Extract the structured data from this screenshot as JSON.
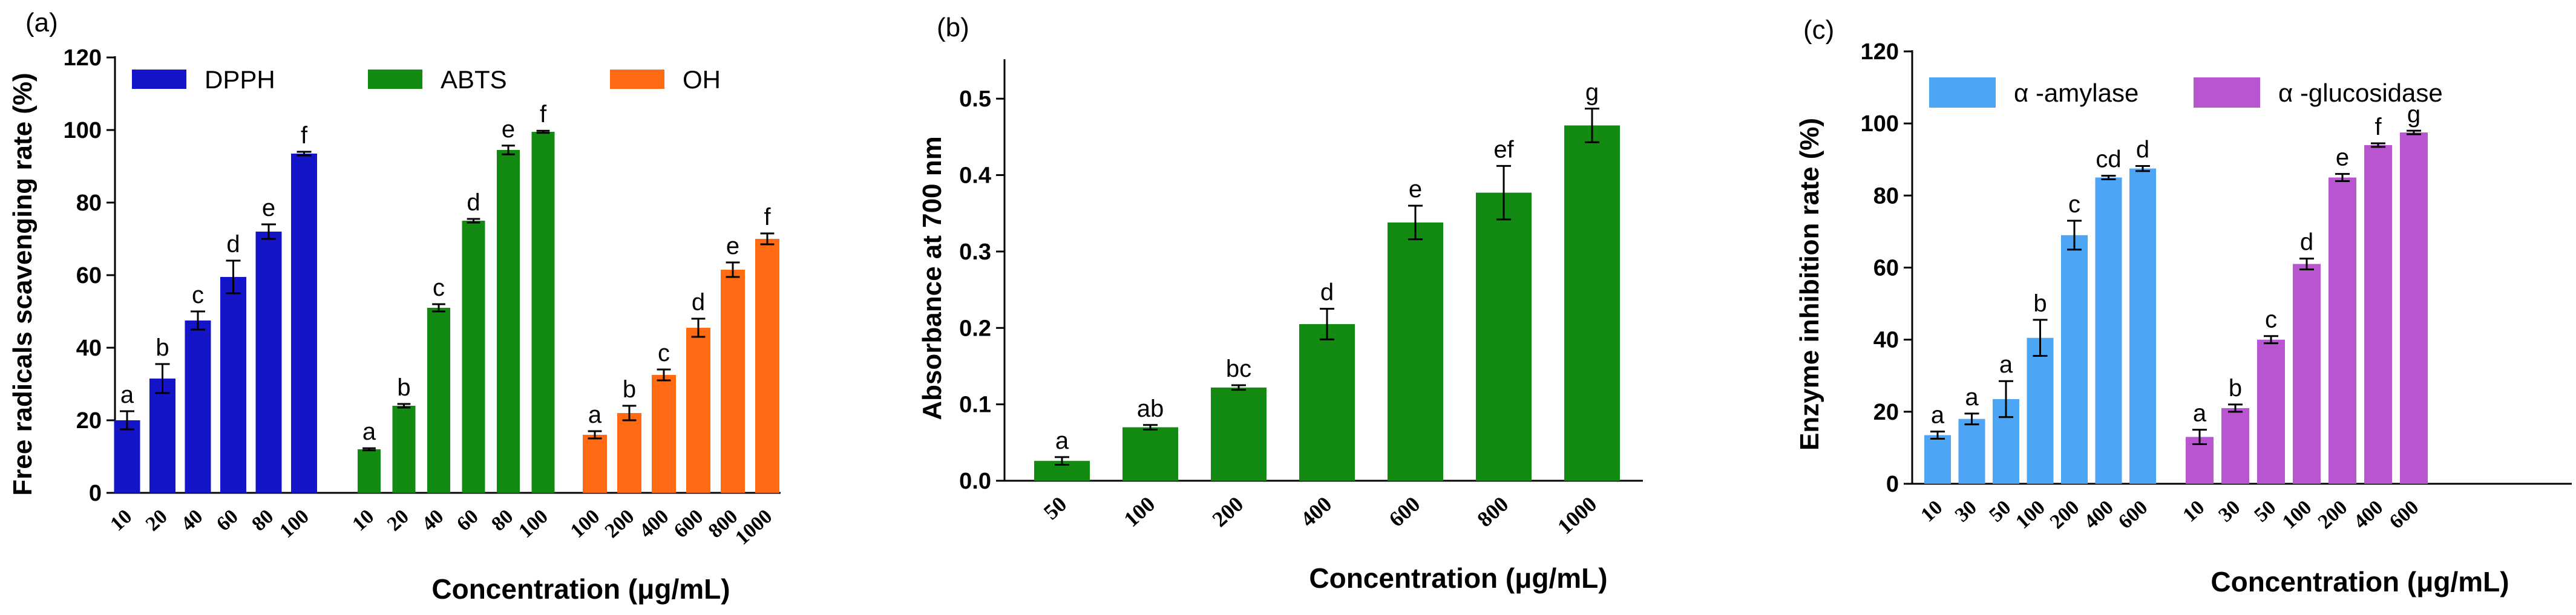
{
  "chart_data": [
    {
      "panel_label": "(a)",
      "type": "bar",
      "title": "",
      "ylabel": "Free radicals scavenging rate (%)",
      "xlabel": "Concentration (μg/mL)",
      "ylim": [
        0,
        120
      ],
      "yticks": [
        0,
        20,
        40,
        60,
        80,
        100,
        120
      ],
      "legend_position": "top",
      "series": [
        {
          "name": "DPPH",
          "color": "#1414c8",
          "categories": [
            "10",
            "20",
            "40",
            "60",
            "80",
            "100"
          ],
          "values": [
            20,
            31.5,
            47.5,
            59.5,
            72,
            93.5
          ],
          "errors": [
            2.5,
            4,
            2.5,
            4.5,
            2,
            0.5
          ],
          "letters": [
            "a",
            "b",
            "c",
            "d",
            "e",
            "f"
          ]
        },
        {
          "name": "ABTS",
          "color": "#138b13",
          "categories": [
            "10",
            "20",
            "40",
            "60",
            "80",
            "100"
          ],
          "values": [
            12,
            24,
            51,
            75,
            94.5,
            99.5
          ],
          "errors": [
            0.3,
            0.5,
            1,
            0.5,
            1.2,
            0.3
          ],
          "letters": [
            "a",
            "b",
            "c",
            "d",
            "e",
            "f"
          ]
        },
        {
          "name": "OH",
          "color": "#ff6a13",
          "categories": [
            "100",
            "200",
            "400",
            "600",
            "800",
            "1000"
          ],
          "values": [
            16,
            22,
            32.5,
            45.5,
            61.5,
            70
          ],
          "errors": [
            1,
            2,
            1.5,
            2.5,
            2,
            1.5
          ],
          "letters": [
            "a",
            "b",
            "c",
            "d",
            "e",
            "f"
          ]
        }
      ]
    },
    {
      "panel_label": "(b)",
      "type": "bar",
      "title": "",
      "ylabel": "Absorbance at 700 nm",
      "xlabel": "Concentration (μg/mL)",
      "ylim": [
        0,
        0.55
      ],
      "yticks": [
        0.0,
        0.1,
        0.2,
        0.3,
        0.4,
        0.5
      ],
      "ytick_labels": [
        "0.0",
        "0.1",
        "0.2",
        "0.3",
        "0.4",
        "0.5"
      ],
      "series": [
        {
          "name": "",
          "color": "#138b13",
          "categories": [
            "50",
            "100",
            "200",
            "400",
            "600",
            "800",
            "1000"
          ],
          "values": [
            0.026,
            0.07,
            0.122,
            0.205,
            0.338,
            0.377,
            0.465
          ],
          "errors": [
            0.005,
            0.003,
            0.003,
            0.02,
            0.022,
            0.035,
            0.022
          ],
          "letters": [
            "a",
            "ab",
            "bc",
            "d",
            "e",
            "ef",
            "g"
          ]
        }
      ]
    },
    {
      "panel_label": "(c)",
      "type": "bar",
      "title": "",
      "ylabel": "Enzyme inhibition rate (%)",
      "xlabel": "Concentration (μg/mL)",
      "ylim": [
        0,
        120
      ],
      "yticks": [
        0,
        20,
        40,
        60,
        80,
        100,
        120
      ],
      "legend_position": "top",
      "series": [
        {
          "name": "α -amylase",
          "color": "#4ca6f5",
          "categories": [
            "10",
            "30",
            "50",
            "100",
            "200",
            "400",
            "600"
          ],
          "values": [
            13.5,
            18,
            23.5,
            40.5,
            69,
            85,
            87.5
          ],
          "errors": [
            1,
            1.5,
            5,
            5,
            4,
            0.5,
            0.7
          ],
          "letters": [
            "a",
            "a",
            "a",
            "b",
            "c",
            "cd",
            "d"
          ]
        },
        {
          "name": "α -glucosidase",
          "color": "#b955d1",
          "categories": [
            "10",
            "30",
            "50",
            "100",
            "200",
            "400",
            "600"
          ],
          "values": [
            13,
            21,
            40,
            61,
            85,
            94,
            97.5
          ],
          "errors": [
            2,
            1,
            1,
            1.5,
            1,
            0.5,
            0.5
          ],
          "letters": [
            "a",
            "b",
            "c",
            "d",
            "e",
            "f",
            "g"
          ]
        }
      ]
    }
  ]
}
